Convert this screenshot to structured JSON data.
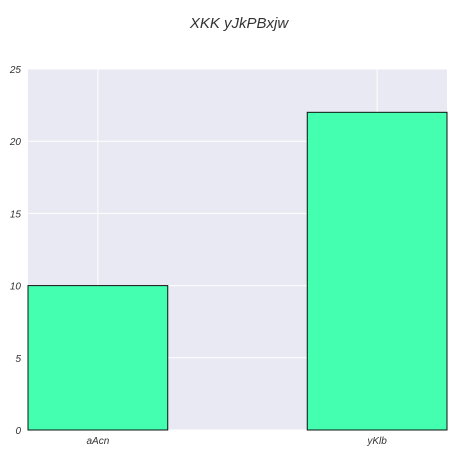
{
  "chart_data": {
    "type": "bar",
    "title": "XKK yJkPBxjw",
    "xlabel": "",
    "ylabel": "",
    "categories": [
      "aAcn",
      "yKlb"
    ],
    "values": [
      10,
      22
    ],
    "ylim": [
      0,
      25
    ],
    "yticks": [
      0,
      5,
      10,
      15,
      20,
      25
    ],
    "grid": true,
    "legend": "none",
    "colors": {
      "bar_fill": "#44ffb0",
      "bar_edge": "#111111",
      "plot_background": "#e8e9f2",
      "grid": "#ffffff",
      "text": "#333333"
    }
  }
}
